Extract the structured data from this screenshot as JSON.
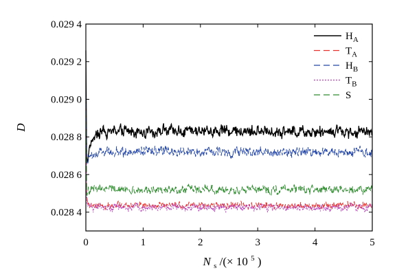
{
  "chart_data": {
    "type": "line",
    "xlabel_main": "N",
    "xlabel_sub": "s",
    "xlabel_rest": "/(× 10",
    "xlabel_sup": "5",
    "xlabel_end": ")",
    "ylabel": "D",
    "xlim": [
      0,
      5
    ],
    "ylim": [
      0.0283,
      0.0294
    ],
    "x_ticks": [
      0,
      1,
      2,
      3,
      4,
      5
    ],
    "x_tick_labels": [
      "0",
      "1",
      "2",
      "3",
      "4",
      "5"
    ],
    "y_ticks": [
      0.0284,
      0.0286,
      0.0288,
      0.029,
      0.0292,
      0.0294
    ],
    "y_tick_labels": [
      "0.028 4",
      "0.028 6",
      "0.028 8",
      "0.029 0",
      "0.029 2",
      "0.029 4"
    ],
    "grid": false,
    "legend_position": "top-right",
    "series": [
      {
        "name": "H",
        "sub": "A",
        "color": "#000000",
        "dash": "",
        "spike_start": 0.02926,
        "rise_start": 0.02866,
        "rise_until": 0.25,
        "plateau": 0.02883,
        "noise": 4e-05,
        "x": [
          0,
          0.02,
          0.1,
          0.2,
          0.3,
          0.5,
          1.0,
          1.3,
          1.5,
          2.0,
          2.3,
          2.5,
          3.0,
          3.5,
          4.0,
          4.5,
          5.0
        ],
        "y": [
          0.02926,
          0.02868,
          0.02876,
          0.02881,
          0.02882,
          0.02882,
          0.02883,
          0.02886,
          0.02882,
          0.02883,
          0.02886,
          0.02883,
          0.02884,
          0.02882,
          0.02883,
          0.02883,
          0.02883
        ]
      },
      {
        "name": "T",
        "sub": "A",
        "color": "#e8302a",
        "dash": "7,4",
        "spike_start": 0.029,
        "rise_start": 0.02848,
        "rise_until": 0.05,
        "plateau": 0.028435,
        "noise": 2.5e-05,
        "x": [
          0,
          0.05,
          0.5,
          1.0,
          2.0,
          3.0,
          4.0,
          5.0
        ],
        "y": [
          0.029,
          0.02846,
          0.02844,
          0.02844,
          0.02844,
          0.02843,
          0.02844,
          0.02844
        ]
      },
      {
        "name": "H",
        "sub": "B",
        "color": "#2346a8",
        "dash": "7,3",
        "spike_start": 0.02905,
        "rise_start": 0.02866,
        "rise_until": 0.3,
        "plateau": 0.02872,
        "noise": 3.5e-05,
        "x": [
          0,
          0.02,
          0.1,
          0.2,
          0.3,
          0.5,
          1.0,
          2.0,
          3.0,
          4.0,
          5.0
        ],
        "y": [
          0.02905,
          0.02864,
          0.02868,
          0.0287,
          0.02871,
          0.02872,
          0.02872,
          0.02872,
          0.02872,
          0.02872,
          0.02872
        ]
      },
      {
        "name": "T",
        "sub": "B",
        "color": "#b63cb8",
        "dash": "2,2",
        "spike_start": 0.02892,
        "rise_start": 0.02845,
        "rise_until": 0.05,
        "plateau": 0.028425,
        "noise": 2.5e-05,
        "x": [
          0,
          0.05,
          0.5,
          1.0,
          2.0,
          3.0,
          4.0,
          5.0
        ],
        "y": [
          0.02892,
          0.02844,
          0.02843,
          0.02843,
          0.02843,
          0.02842,
          0.02843,
          0.02843
        ]
      },
      {
        "name": "S",
        "sub": "",
        "color": "#2e8b2e",
        "dash": "9,4",
        "spike_start": 0.02898,
        "rise_start": 0.02849,
        "rise_until": 0.05,
        "plateau": 0.02852,
        "noise": 3e-05,
        "x": [
          0,
          0.05,
          0.5,
          1.0,
          2.0,
          3.0,
          4.0,
          5.0
        ],
        "y": [
          0.02898,
          0.0285,
          0.02852,
          0.02852,
          0.02852,
          0.02852,
          0.02852,
          0.02852
        ]
      }
    ]
  }
}
